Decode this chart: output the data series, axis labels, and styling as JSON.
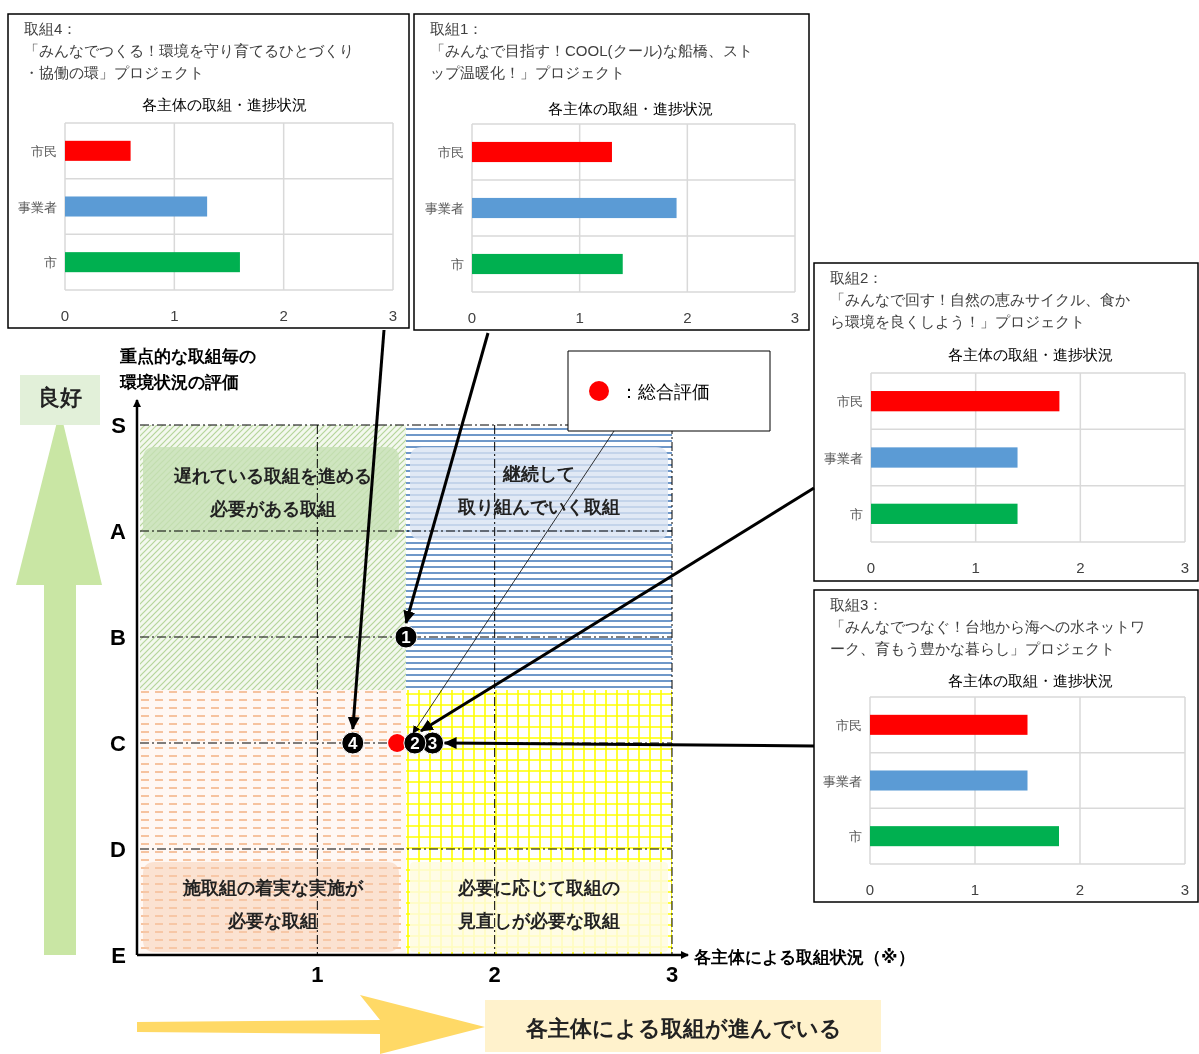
{
  "chart_data": [
    {
      "type": "bar",
      "orientation": "horizontal",
      "title": "取組4：",
      "subtitle": "「みんなでつくる！環境を守り育てるひとづくり・協働の環」プロジェクト",
      "annotations": [
        "各主体の取組・進捗状況"
      ],
      "categories": [
        "市民",
        "事業者",
        "市"
      ],
      "values": [
        0.6,
        1.3,
        1.6
      ],
      "colors": [
        "#ff0000",
        "#5b9bd5",
        "#00b050"
      ],
      "xlim": [
        0,
        3
      ],
      "xticks": [
        0,
        1,
        2,
        3
      ],
      "grid": true
    },
    {
      "type": "bar",
      "orientation": "horizontal",
      "title": "取組1：",
      "subtitle": "「みんなで目指す！COOL(クール)な船橋、ストップ温暖化！」プロジェクト",
      "annotations": [
        "各主体の取組・進捗状況"
      ],
      "categories": [
        "市民",
        "事業者",
        "市"
      ],
      "values": [
        1.3,
        1.9,
        1.4
      ],
      "colors": [
        "#ff0000",
        "#5b9bd5",
        "#00b050"
      ],
      "xlim": [
        0,
        3
      ],
      "xticks": [
        0,
        1,
        2,
        3
      ],
      "grid": true
    },
    {
      "type": "bar",
      "orientation": "horizontal",
      "title": "取組2：",
      "subtitle": "「みんなで回す！自然の恵みサイクル、食から環境を良くしよう！」プロジェクト",
      "annotations": [
        "各主体の取組・進捗状況"
      ],
      "categories": [
        "市民",
        "事業者",
        "市"
      ],
      "values": [
        1.8,
        1.4,
        1.4
      ],
      "colors": [
        "#ff0000",
        "#5b9bd5",
        "#00b050"
      ],
      "xlim": [
        0,
        3
      ],
      "xticks": [
        0,
        1,
        2,
        3
      ],
      "grid": true
    },
    {
      "type": "scatter",
      "xlabel": "各主体による取組状況（※）",
      "ylabel": "重点的な取組毎の環境状況の評価",
      "xlim": [
        0,
        3
      ],
      "xticks": [
        1,
        2,
        3
      ],
      "orientation": "horizontal",
      "categories": [
        "S",
        "A",
        "B",
        "C",
        "D",
        "E"
      ],
      "grid": true,
      "legend": "top right",
      "marker": "circle",
      "series": [
        {
          "color": "#000000",
          "values": [
            null,
            null,
            1.5,
            1.2,
            null,
            null
          ]
        },
        {
          "color": "#000000",
          "values": [
            null,
            null,
            null,
            1.55,
            null,
            null
          ]
        },
        {
          "color": "#000000",
          "values": [
            null,
            null,
            null,
            1.65,
            null,
            null
          ]
        },
        {
          "name": "：総合評価",
          "color": "#ff0000",
          "values": [
            null,
            null,
            null,
            1.45,
            null,
            null
          ]
        }
      ],
      "annotations": [
        "遅れている取組を進める",
        "必要がある取組",
        "継続して",
        "取り組んでいく取組",
        "施取組の着実な実施が",
        "必要な取組",
        "必要に応じて取組の",
        "見直しが必要な取組",
        "良好",
        "各主体による取組が進んでいる",
        {
          "text": "1",
          "x": 1.5,
          "y": "B"
        },
        {
          "text": "2",
          "x": 1.55,
          "y": "C"
        },
        {
          "text": "3",
          "x": 1.65,
          "y": "C"
        },
        {
          "text": "4",
          "x": 1.2,
          "y": "C"
        }
      ]
    },
    {
      "type": "bar",
      "orientation": "horizontal",
      "title": "取組3：",
      "subtitle": "「みんなでつなぐ！台地から海への水ネットワーク、育もう豊かな暮らし」プロジェクト",
      "annotations": [
        "各主体の取組・進捗状況"
      ],
      "categories": [
        "市民",
        "事業者",
        "市"
      ],
      "values": [
        1.5,
        1.5,
        1.8
      ],
      "colors": [
        "#ff0000",
        "#5b9bd5",
        "#00b050"
      ],
      "xlim": [
        0,
        3
      ],
      "xticks": [
        0,
        1,
        2,
        3
      ],
      "grid": true
    }
  ]
}
